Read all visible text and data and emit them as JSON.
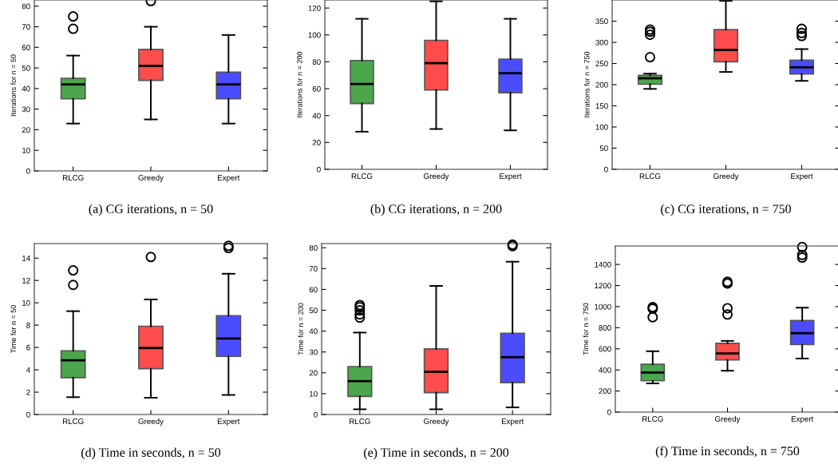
{
  "chart_data": [
    {
      "type": "box",
      "categories": [
        "RLCG",
        "Greedy",
        "Expert"
      ],
      "colors": [
        "#4ca64c",
        "#ff4c4c",
        "#4c4cff"
      ],
      "ylabel": "Iterations for n = 50",
      "ylim": [
        0,
        83
      ],
      "yticks": [
        0,
        10,
        20,
        30,
        40,
        50,
        60,
        70,
        80
      ],
      "grid": false,
      "annotations": [
        "(a) CG iterations, n = 50"
      ],
      "boxes": [
        {
          "low": 23,
          "q1": 35,
          "median": 42,
          "q3": 45,
          "high": 56,
          "outliers": [
            69,
            75
          ]
        },
        {
          "low": 25,
          "q1": 44,
          "median": 51,
          "q3": 59,
          "high": 70,
          "outliers": [
            82.5
          ]
        },
        {
          "low": 23,
          "q1": 35,
          "median": 42,
          "q3": 48,
          "high": 66
        }
      ]
    },
    {
      "type": "box",
      "categories": [
        "RLCG",
        "Greedy",
        "Expert"
      ],
      "colors": [
        "#4ca64c",
        "#ff4c4c",
        "#4c4cff"
      ],
      "ylabel": "Iterations for n = 200",
      "ylim": [
        0,
        126
      ],
      "yticks": [
        0,
        20,
        40,
        60,
        80,
        100,
        120
      ],
      "grid": false,
      "annotations": [
        "(b) CG iterations, n = 200"
      ],
      "boxes": [
        {
          "low": 28,
          "q1": 49,
          "median": 63.5,
          "q3": 81,
          "high": 112
        },
        {
          "low": 30,
          "q1": 59,
          "median": 79,
          "q3": 96,
          "high": 125
        },
        {
          "low": 29,
          "q1": 57,
          "median": 71.5,
          "q3": 82,
          "high": 112
        }
      ]
    },
    {
      "type": "box",
      "categories": [
        "RLCG",
        "Greedy",
        "Expert"
      ],
      "colors": [
        "#4ca64c",
        "#ff4c4c",
        "#4c4cff"
      ],
      "ylabel": "Iterations for n = 750",
      "ylim": [
        0,
        400
      ],
      "yticks": [
        0,
        50,
        100,
        150,
        200,
        250,
        300,
        350
      ],
      "grid": false,
      "annotations": [
        "(c) CG iterations, n = 750"
      ],
      "boxes": [
        {
          "low": 190,
          "q1": 201,
          "median": 215,
          "q3": 222,
          "high": 226,
          "outliers": [
            265,
            318,
            325,
            330
          ]
        },
        {
          "low": 230,
          "q1": 254,
          "median": 282,
          "q3": 330,
          "high": 398
        },
        {
          "low": 209,
          "q1": 225,
          "median": 241,
          "q3": 258,
          "high": 284,
          "outliers": [
            315,
            322,
            332
          ]
        }
      ]
    },
    {
      "type": "box",
      "categories": [
        "RLCG",
        "Greedy",
        "Expert"
      ],
      "colors": [
        "#4ca64c",
        "#ff4c4c",
        "#4c4cff"
      ],
      "ylabel": "Time for n = 50",
      "ylim": [
        0,
        15.3
      ],
      "yticks": [
        0,
        2,
        4,
        6,
        8,
        10,
        12,
        14
      ],
      "grid": false,
      "annotations": [
        "(d) Time in seconds, n = 50"
      ],
      "boxes": [
        {
          "low": 1.55,
          "q1": 3.3,
          "median": 4.85,
          "q3": 5.7,
          "high": 9.25,
          "outliers": [
            11.6,
            12.9
          ]
        },
        {
          "low": 1.5,
          "q1": 4.1,
          "median": 5.95,
          "q3": 7.9,
          "high": 10.3,
          "outliers": [
            14.1
          ]
        },
        {
          "low": 1.75,
          "q1": 5.2,
          "median": 6.8,
          "q3": 8.85,
          "high": 12.6,
          "outliers": [
            14.9,
            15.1
          ]
        }
      ]
    },
    {
      "type": "box",
      "categories": [
        "RLCG",
        "Greedy",
        "Expert"
      ],
      "colors": [
        "#4ca64c",
        "#ff4c4c",
        "#4c4cff"
      ],
      "ylabel": "Time for n = 200",
      "ylim": [
        0,
        82
      ],
      "yticks": [
        0,
        10,
        20,
        30,
        40,
        50,
        60,
        70,
        80
      ],
      "grid": false,
      "annotations": [
        "(e) Time in seconds, n = 200"
      ],
      "boxes": [
        {
          "low": 2.5,
          "q1": 8.7,
          "median": 16,
          "q3": 23,
          "high": 39.3,
          "outliers": [
            46.5,
            48,
            50,
            51.5,
            52.5
          ]
        },
        {
          "low": 2.5,
          "q1": 10.5,
          "median": 20.5,
          "q3": 31.5,
          "high": 61.7
        },
        {
          "low": 3.4,
          "q1": 15.3,
          "median": 27.5,
          "q3": 39,
          "high": 73.3,
          "outliers": [
            80.8,
            81.5
          ]
        }
      ]
    },
    {
      "type": "box",
      "categories": [
        "RLCG",
        "Greedy",
        "Expert"
      ],
      "colors": [
        "#4ca64c",
        "#ff4c4c",
        "#4c4cff"
      ],
      "ylabel": "Time for n = 750",
      "ylim": [
        0,
        1575
      ],
      "yticks": [
        0,
        200,
        400,
        600,
        800,
        1000,
        1200,
        1400
      ],
      "grid": false,
      "annotations": [
        "(f) Time in seconds, n = 750"
      ],
      "boxes": [
        {
          "low": 272,
          "q1": 297,
          "median": 375,
          "q3": 453,
          "high": 577,
          "outliers": [
            900,
            980,
            995
          ]
        },
        {
          "low": 392,
          "q1": 494,
          "median": 556,
          "q3": 652,
          "high": 675,
          "outliers": [
            925,
            985,
            1220,
            1235
          ]
        },
        {
          "low": 508,
          "q1": 640,
          "median": 748,
          "q3": 868,
          "high": 990,
          "outliers": [
            1465,
            1490,
            1565
          ]
        }
      ]
    }
  ]
}
